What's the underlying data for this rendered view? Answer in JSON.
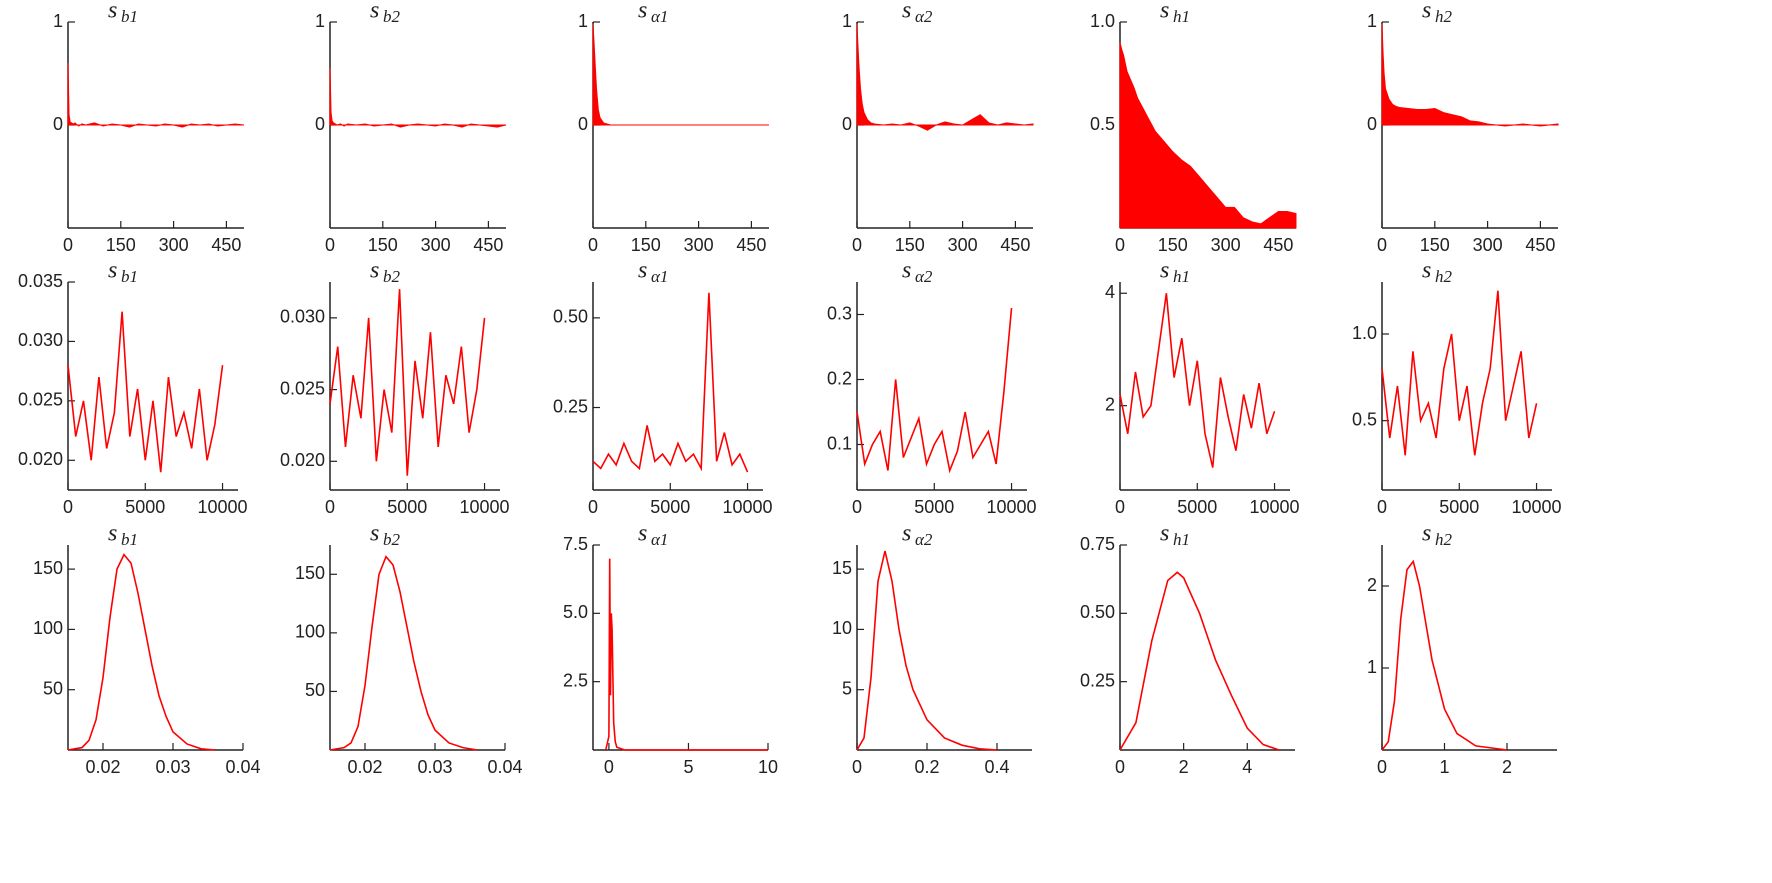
{
  "chart_data": [
    {
      "type": "area",
      "title": "s",
      "title_subscript": "b1",
      "color": "#ff0000",
      "x": [
        0,
        3,
        6,
        10,
        15,
        20,
        30,
        40,
        50,
        75,
        100,
        125,
        150,
        175,
        200,
        225,
        250,
        275,
        300,
        325,
        350,
        375,
        400,
        425,
        450,
        475,
        500
      ],
      "values": [
        0.6,
        0.1,
        0.03,
        0.02,
        0.01,
        0.02,
        -0.01,
        0.01,
        0,
        0.02,
        -0.01,
        0.01,
        0,
        -0.02,
        0.01,
        0,
        -0.01,
        0.01,
        0,
        -0.02,
        0.01,
        0,
        0.01,
        -0.01,
        0,
        0.01,
        0
      ],
      "xlim": [
        0,
        500
      ],
      "ylim": [
        -1,
        1
      ],
      "xticks": [
        0,
        150,
        300,
        450
      ],
      "yticks": [
        0,
        1
      ]
    },
    {
      "type": "area",
      "title": "s",
      "title_subscript": "b2",
      "color": "#ff0000",
      "x": [
        0,
        3,
        6,
        10,
        15,
        20,
        30,
        40,
        50,
        75,
        100,
        125,
        150,
        175,
        200,
        225,
        250,
        275,
        300,
        325,
        350,
        375,
        400,
        425,
        450,
        475,
        500
      ],
      "values": [
        0.55,
        0.12,
        0.04,
        0.02,
        0.01,
        0,
        0.01,
        -0.01,
        0.01,
        0,
        0.01,
        -0.01,
        0,
        0.01,
        -0.02,
        0,
        0.01,
        0,
        -0.01,
        0.01,
        0,
        -0.02,
        0.01,
        0,
        -0.01,
        -0.02,
        0
      ],
      "xlim": [
        0,
        500
      ],
      "ylim": [
        -1,
        1
      ],
      "xticks": [
        0,
        150,
        300,
        450
      ],
      "yticks": [
        0,
        1
      ]
    },
    {
      "type": "area",
      "title": "s",
      "title_subscript": "α1",
      "color": "#ff0000",
      "x": [
        0,
        3,
        6,
        10,
        15,
        20,
        30,
        40,
        50,
        75,
        100,
        125,
        150,
        175,
        200,
        225,
        250,
        275,
        300,
        325,
        350,
        375,
        400,
        425,
        450,
        475,
        500
      ],
      "values": [
        0.98,
        0.8,
        0.6,
        0.35,
        0.15,
        0.07,
        0.02,
        0.01,
        0,
        0,
        0,
        0,
        0,
        0,
        0,
        0,
        0,
        0,
        0,
        0,
        0,
        0,
        0,
        0,
        0,
        0,
        0
      ],
      "xlim": [
        0,
        500
      ],
      "ylim": [
        -1,
        1
      ],
      "xticks": [
        0,
        150,
        300,
        450
      ],
      "yticks": [
        0,
        1
      ]
    },
    {
      "type": "area",
      "title": "s",
      "title_subscript": "α2",
      "color": "#ff0000",
      "x": [
        0,
        3,
        6,
        10,
        15,
        20,
        30,
        40,
        50,
        75,
        100,
        125,
        150,
        175,
        200,
        225,
        250,
        275,
        300,
        325,
        350,
        375,
        400,
        425,
        450,
        475,
        500
      ],
      "values": [
        0.98,
        0.75,
        0.55,
        0.35,
        0.2,
        0.12,
        0.05,
        0.02,
        0.01,
        0,
        0.01,
        0,
        0.02,
        -0.01,
        -0.05,
        0,
        0.03,
        0.01,
        0,
        0.05,
        0.1,
        0.02,
        0,
        0.02,
        0.01,
        0,
        0.01
      ],
      "xlim": [
        0,
        500
      ],
      "ylim": [
        -1,
        1
      ],
      "xticks": [
        0,
        150,
        300,
        450
      ],
      "yticks": [
        0,
        1
      ]
    },
    {
      "type": "area",
      "title": "s",
      "title_subscript": "h1",
      "color": "#ff0000",
      "x": [
        0,
        3,
        6,
        10,
        15,
        20,
        30,
        40,
        50,
        75,
        100,
        125,
        150,
        175,
        200,
        225,
        250,
        275,
        300,
        325,
        350,
        375,
        400,
        425,
        450,
        475,
        500
      ],
      "values": [
        0.9,
        0.88,
        0.86,
        0.84,
        0.8,
        0.76,
        0.72,
        0.68,
        0.63,
        0.55,
        0.47,
        0.42,
        0.37,
        0.33,
        0.3,
        0.25,
        0.2,
        0.15,
        0.1,
        0.1,
        0.05,
        0.03,
        0.02,
        0.05,
        0.08,
        0.08,
        0.07
      ],
      "xlim": [
        0,
        500
      ],
      "ylim": [
        0,
        1
      ],
      "xticks": [
        0,
        150,
        300,
        450
      ],
      "yticks": [
        0.5,
        {
          "value": 1,
          "label": "1.0"
        }
      ]
    },
    {
      "type": "area",
      "title": "s",
      "title_subscript": "h2",
      "color": "#ff0000",
      "x": [
        0,
        3,
        6,
        10,
        15,
        20,
        30,
        40,
        50,
        75,
        100,
        125,
        150,
        175,
        200,
        225,
        250,
        275,
        300,
        325,
        350,
        375,
        400,
        425,
        450,
        475,
        500
      ],
      "values": [
        0.98,
        0.7,
        0.5,
        0.35,
        0.3,
        0.25,
        0.2,
        0.18,
        0.17,
        0.16,
        0.15,
        0.15,
        0.16,
        0.12,
        0.1,
        0.08,
        0.04,
        0.03,
        0.01,
        0,
        -0.01,
        0,
        0.01,
        0,
        -0.01,
        0,
        0.01
      ],
      "xlim": [
        0,
        500
      ],
      "ylim": [
        -1,
        1
      ],
      "xticks": [
        0,
        150,
        300,
        450
      ],
      "yticks": [
        0,
        1
      ]
    },
    {
      "type": "line",
      "title": "s",
      "title_subscript": "b1",
      "color": "#ff0000",
      "x": [
        0,
        500,
        1000,
        1500,
        2000,
        2500,
        3000,
        3500,
        4000,
        4500,
        5000,
        5500,
        6000,
        6500,
        7000,
        7500,
        8000,
        8500,
        9000,
        9500,
        10000
      ],
      "values": [
        0.028,
        0.022,
        0.025,
        0.02,
        0.027,
        0.021,
        0.024,
        0.0325,
        0.022,
        0.026,
        0.02,
        0.025,
        0.019,
        0.027,
        0.022,
        0.024,
        0.021,
        0.026,
        0.02,
        0.023,
        0.028
      ],
      "xlim": [
        0,
        11000
      ],
      "ylim": [
        0.0175,
        0.035
      ],
      "xticks": [
        0,
        5000,
        10000
      ],
      "yticks": [
        {
          "value": 0.02,
          "label": "0.020"
        },
        {
          "value": 0.025,
          "label": "0.025"
        },
        {
          "value": 0.03,
          "label": "0.030"
        },
        {
          "value": 0.035,
          "label": "0.035"
        }
      ]
    },
    {
      "type": "line",
      "title": "s",
      "title_subscript": "b2",
      "color": "#ff0000",
      "x": [
        0,
        500,
        1000,
        1500,
        2000,
        2500,
        3000,
        3500,
        4000,
        4500,
        5000,
        5500,
        6000,
        6500,
        7000,
        7500,
        8000,
        8500,
        9000,
        9500,
        10000
      ],
      "values": [
        0.024,
        0.028,
        0.021,
        0.026,
        0.023,
        0.03,
        0.02,
        0.025,
        0.022,
        0.032,
        0.019,
        0.027,
        0.023,
        0.029,
        0.021,
        0.026,
        0.024,
        0.028,
        0.022,
        0.025,
        0.03
      ],
      "xlim": [
        0,
        11000
      ],
      "ylim": [
        0.018,
        0.0325
      ],
      "xticks": [
        0,
        5000,
        10000
      ],
      "yticks": [
        {
          "value": 0.02,
          "label": "0.020"
        },
        {
          "value": 0.025,
          "label": "0.025"
        },
        {
          "value": 0.03,
          "label": "0.030"
        }
      ]
    },
    {
      "type": "line",
      "title": "s",
      "title_subscript": "α1",
      "color": "#ff0000",
      "x": [
        0,
        500,
        1000,
        1500,
        2000,
        2500,
        3000,
        3500,
        4000,
        4500,
        5000,
        5500,
        6000,
        6500,
        7000,
        7500,
        8000,
        8500,
        9000,
        9500,
        10000
      ],
      "values": [
        0.1,
        0.08,
        0.12,
        0.09,
        0.15,
        0.1,
        0.08,
        0.2,
        0.1,
        0.12,
        0.09,
        0.15,
        0.1,
        0.12,
        0.08,
        0.57,
        0.1,
        0.18,
        0.09,
        0.12,
        0.07
      ],
      "xlim": [
        0,
        11000
      ],
      "ylim": [
        0.02,
        0.6
      ],
      "xticks": [
        0,
        5000,
        10000
      ],
      "yticks": [
        0.25,
        {
          "value": 0.5,
          "label": "0.50"
        }
      ]
    },
    {
      "type": "line",
      "title": "s",
      "title_subscript": "α2",
      "color": "#ff0000",
      "x": [
        0,
        500,
        1000,
        1500,
        2000,
        2500,
        3000,
        3500,
        4000,
        4500,
        5000,
        5500,
        6000,
        6500,
        7000,
        7500,
        8000,
        8500,
        9000,
        9500,
        10000
      ],
      "values": [
        0.15,
        0.07,
        0.1,
        0.12,
        0.06,
        0.2,
        0.08,
        0.11,
        0.14,
        0.07,
        0.1,
        0.12,
        0.06,
        0.09,
        0.15,
        0.08,
        0.1,
        0.12,
        0.07,
        0.18,
        0.31
      ],
      "xlim": [
        0,
        11000
      ],
      "ylim": [
        0.03,
        0.35
      ],
      "xticks": [
        0,
        5000,
        10000
      ],
      "yticks": [
        0.1,
        0.2,
        0.3
      ]
    },
    {
      "type": "line",
      "title": "s",
      "title_subscript": "h1",
      "color": "#ff0000",
      "x": [
        0,
        500,
        1000,
        1500,
        2000,
        2500,
        3000,
        3500,
        4000,
        4500,
        5000,
        5500,
        6000,
        6500,
        7000,
        7500,
        8000,
        8500,
        9000,
        9500,
        10000
      ],
      "values": [
        2.2,
        1.5,
        2.6,
        1.8,
        2.0,
        3.0,
        4.0,
        2.5,
        3.2,
        2.0,
        2.8,
        1.5,
        0.9,
        2.5,
        1.8,
        1.2,
        2.2,
        1.6,
        2.4,
        1.5,
        1.9
      ],
      "xlim": [
        0,
        11000
      ],
      "ylim": [
        0.5,
        4.2
      ],
      "xticks": [
        0,
        5000,
        10000
      ],
      "yticks": [
        2,
        4
      ]
    },
    {
      "type": "line",
      "title": "s",
      "title_subscript": "h2",
      "color": "#ff0000",
      "x": [
        0,
        500,
        1000,
        1500,
        2000,
        2500,
        3000,
        3500,
        4000,
        4500,
        5000,
        5500,
        6000,
        6500,
        7000,
        7500,
        8000,
        8500,
        9000,
        9500,
        10000
      ],
      "values": [
        0.8,
        0.4,
        0.7,
        0.3,
        0.9,
        0.5,
        0.6,
        0.4,
        0.8,
        1.0,
        0.5,
        0.7,
        0.3,
        0.6,
        0.8,
        1.25,
        0.5,
        0.7,
        0.9,
        0.4,
        0.6
      ],
      "xlim": [
        0,
        11000
      ],
      "ylim": [
        0.1,
        1.3
      ],
      "xticks": [
        0,
        5000,
        10000
      ],
      "yticks": [
        0.5,
        {
          "value": 1,
          "label": "1.0"
        }
      ]
    },
    {
      "type": "line",
      "title": "s",
      "title_subscript": "b1",
      "color": "#ff0000",
      "x": [
        0.015,
        0.017,
        0.018,
        0.019,
        0.02,
        0.021,
        0.022,
        0.023,
        0.024,
        0.025,
        0.026,
        0.027,
        0.028,
        0.029,
        0.03,
        0.032,
        0.034,
        0.036
      ],
      "values": [
        0,
        2,
        8,
        25,
        60,
        110,
        150,
        162,
        155,
        130,
        100,
        70,
        45,
        28,
        15,
        5,
        1,
        0
      ],
      "xlim": [
        0.015,
        0.04
      ],
      "ylim": [
        0,
        170
      ],
      "xticks": [
        0.02,
        0.03,
        0.04
      ],
      "yticks": [
        50,
        100,
        150
      ]
    },
    {
      "type": "line",
      "title": "s",
      "title_subscript": "b2",
      "color": "#ff0000",
      "x": [
        0.015,
        0.017,
        0.018,
        0.019,
        0.02,
        0.021,
        0.022,
        0.023,
        0.024,
        0.025,
        0.026,
        0.027,
        0.028,
        0.029,
        0.03,
        0.032,
        0.034,
        0.036
      ],
      "values": [
        0,
        2,
        6,
        20,
        55,
        105,
        150,
        165,
        158,
        135,
        105,
        75,
        50,
        30,
        17,
        6,
        2,
        0
      ],
      "xlim": [
        0.015,
        0.04
      ],
      "ylim": [
        0,
        175
      ],
      "xticks": [
        0.02,
        0.03,
        0.04
      ],
      "yticks": [
        50,
        100,
        150
      ]
    },
    {
      "type": "line",
      "title": "s",
      "title_subscript": "α1",
      "color": "#ff0000",
      "x": [
        -0.2,
        0,
        0.05,
        0.1,
        0.15,
        0.2,
        0.3,
        0.4,
        0.5,
        1,
        2,
        5,
        10
      ],
      "values": [
        0,
        0.5,
        7,
        2,
        5,
        4.4,
        1,
        0.3,
        0.1,
        0,
        0,
        0,
        0
      ],
      "xlim": [
        -1,
        10
      ],
      "ylim": [
        0,
        7.5
      ],
      "xticks": [
        0,
        5,
        10
      ],
      "yticks": [
        2.5,
        {
          "value": 5,
          "label": "5.0"
        },
        7.5
      ]
    },
    {
      "type": "line",
      "title": "s",
      "title_subscript": "α2",
      "color": "#ff0000",
      "x": [
        0,
        0.02,
        0.04,
        0.06,
        0.08,
        0.1,
        0.12,
        0.14,
        0.16,
        0.2,
        0.25,
        0.3,
        0.35,
        0.4
      ],
      "values": [
        0,
        1,
        6,
        14,
        16.5,
        14,
        10,
        7,
        5,
        2.5,
        1,
        0.4,
        0.1,
        0
      ],
      "xlim": [
        0,
        0.5
      ],
      "ylim": [
        0,
        17
      ],
      "xticks": [
        0,
        0.2,
        0.4
      ],
      "yticks": [
        5,
        10,
        15
      ]
    },
    {
      "type": "line",
      "title": "s",
      "title_subscript": "h1",
      "color": "#ff0000",
      "x": [
        0,
        0.5,
        1,
        1.5,
        1.8,
        2,
        2.5,
        3,
        3.5,
        4,
        4.5,
        5
      ],
      "values": [
        0,
        0.1,
        0.4,
        0.62,
        0.65,
        0.63,
        0.5,
        0.33,
        0.2,
        0.08,
        0.02,
        0
      ],
      "xlim": [
        0,
        5.5
      ],
      "ylim": [
        0,
        0.75
      ],
      "xticks": [
        0,
        2,
        4
      ],
      "yticks": [
        0.25,
        {
          "value": 0.5,
          "label": "0.50"
        },
        0.75
      ]
    },
    {
      "type": "line",
      "title": "s",
      "title_subscript": "h2",
      "color": "#ff0000",
      "x": [
        0,
        0.1,
        0.2,
        0.3,
        0.4,
        0.5,
        0.6,
        0.8,
        1,
        1.2,
        1.5,
        2
      ],
      "values": [
        0,
        0.1,
        0.6,
        1.6,
        2.2,
        2.3,
        2.0,
        1.1,
        0.5,
        0.2,
        0.05,
        0
      ],
      "xlim": [
        0,
        2.8
      ],
      "ylim": [
        0,
        2.5
      ],
      "xticks": [
        0,
        1,
        2
      ],
      "yticks": [
        1,
        2
      ]
    }
  ]
}
